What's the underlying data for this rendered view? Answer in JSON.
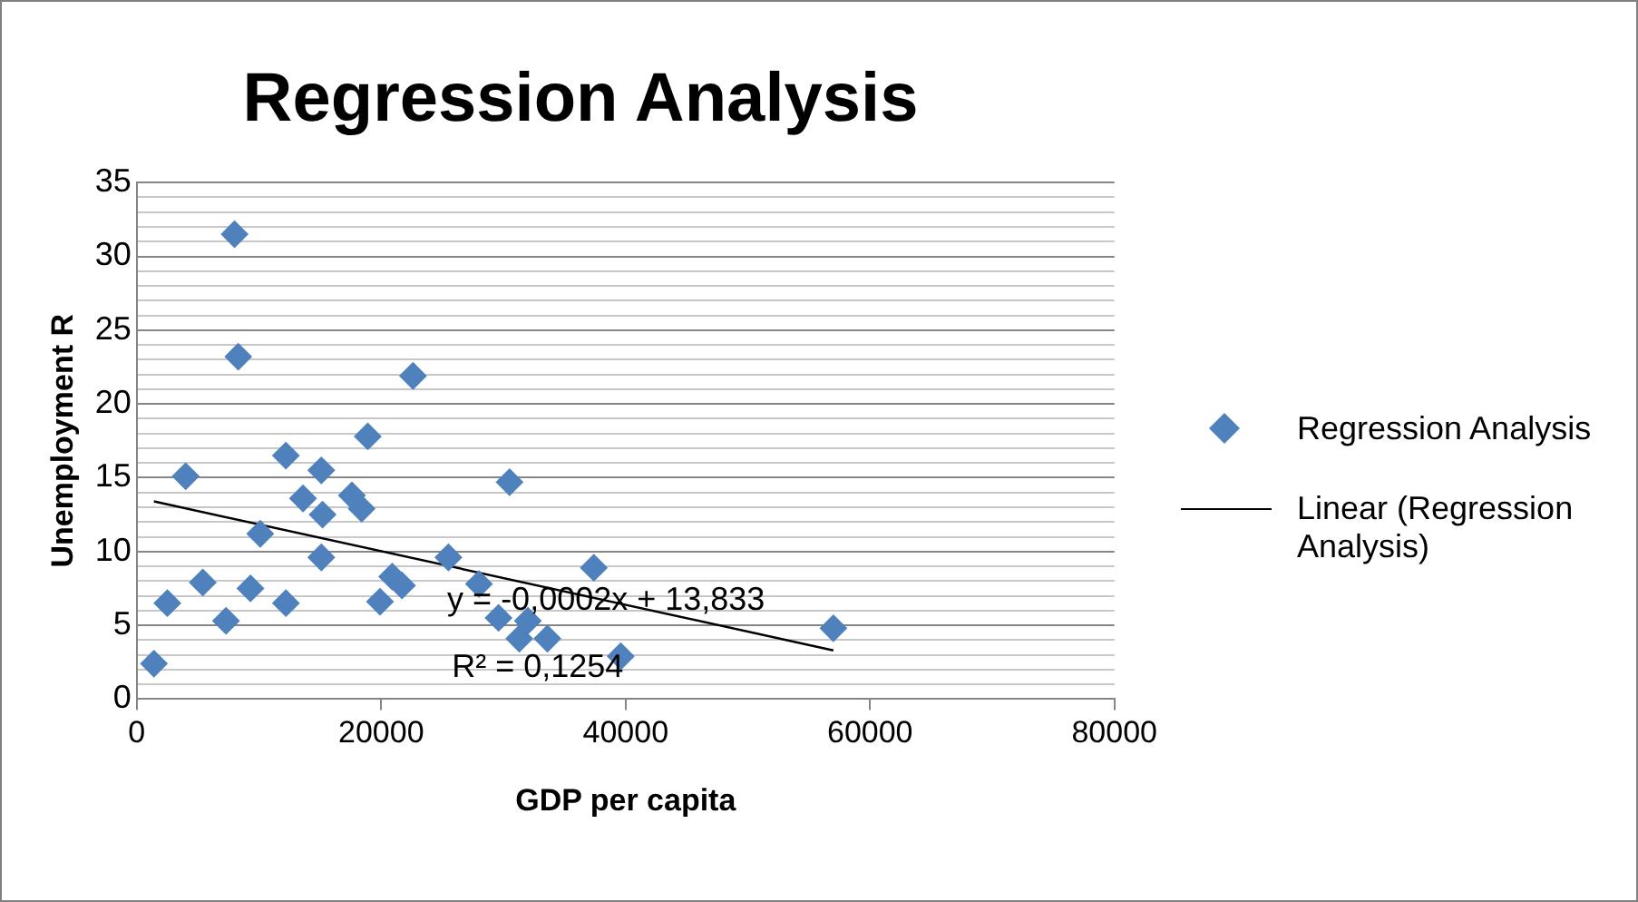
{
  "chart_data": {
    "type": "scatter",
    "title": "Regression Analysis",
    "xlabel": "GDP per capita",
    "ylabel": "Unemployment R",
    "series": [
      {
        "name": "Regression Analysis",
        "color": "#4f81bd",
        "marker": "diamond",
        "x": [
          1400,
          2500,
          4000,
          5400,
          8000,
          8300,
          7300,
          9300,
          10100,
          12200,
          12200,
          13600,
          15100,
          15200,
          15100,
          17600,
          18400,
          18900,
          22600,
          19900,
          20900,
          21700,
          25500,
          28000,
          30500,
          29600,
          31300,
          32000,
          33600,
          37400,
          39600,
          57000
        ],
        "values": [
          2.4,
          6.5,
          15.1,
          7.9,
          31.5,
          23.2,
          5.3,
          7.5,
          11.2,
          16.5,
          6.5,
          13.6,
          15.5,
          12.5,
          9.6,
          13.8,
          12.9,
          17.8,
          21.9,
          6.6,
          8.3,
          7.7,
          9.6,
          7.8,
          14.7,
          5.5,
          4.1,
          5.3,
          4.1,
          8.9,
          2.9,
          4.8
        ]
      },
      {
        "name": "Linear (Regression Analysis)",
        "type": "line",
        "color": "#000000",
        "marker": "none",
        "line_style": "solid",
        "x": [
          1400,
          57000
        ],
        "values": [
          13.4,
          3.3
        ]
      }
    ],
    "annotations": [
      "y = -0,0002x + 13,833",
      "R² = 0,1254"
    ],
    "xlim": [
      0,
      80000
    ],
    "xticks": [
      0,
      20000,
      40000,
      60000,
      80000
    ],
    "ylim": [
      0,
      35
    ],
    "yticks": [
      0,
      {
        "value": 1,
        "label": null
      },
      {
        "value": 2,
        "label": null
      },
      {
        "value": 3,
        "label": null
      },
      {
        "value": 4,
        "label": null
      },
      5,
      {
        "value": 6,
        "label": null
      },
      {
        "value": 7,
        "label": null
      },
      {
        "value": 8,
        "label": null
      },
      {
        "value": 9,
        "label": null
      },
      10,
      {
        "value": 11,
        "label": null
      },
      {
        "value": 12,
        "label": null
      },
      {
        "value": 13,
        "label": null
      },
      {
        "value": 14,
        "label": null
      },
      15,
      {
        "value": 16,
        "label": null
      },
      {
        "value": 17,
        "label": null
      },
      {
        "value": 18,
        "label": null
      },
      {
        "value": 19,
        "label": null
      },
      20,
      {
        "value": 21,
        "label": null
      },
      {
        "value": 22,
        "label": null
      },
      {
        "value": 23,
        "label": null
      },
      {
        "value": 24,
        "label": null
      },
      25,
      {
        "value": 26,
        "label": null
      },
      {
        "value": 27,
        "label": null
      },
      {
        "value": 28,
        "label": null
      },
      {
        "value": 29,
        "label": null
      },
      30,
      {
        "value": 31,
        "label": null
      },
      {
        "value": 32,
        "label": null
      },
      {
        "value": 33,
        "label": null
      },
      {
        "value": 34,
        "label": null
      },
      35
    ],
    "grid": "y",
    "legend": "right"
  }
}
